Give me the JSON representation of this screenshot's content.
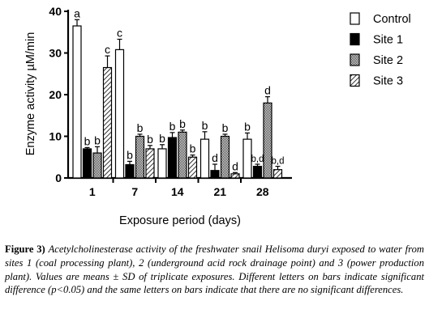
{
  "chart_data": {
    "type": "bar",
    "ylabel": "Enzyme activity µM/min",
    "xlabel": "Exposure period (days)",
    "ylim": [
      0,
      40
    ],
    "yticks": [
      "0",
      "10",
      "20",
      "30",
      "40"
    ],
    "categories": [
      "1",
      "7",
      "14",
      "21",
      "28"
    ],
    "legend_position": "top-right",
    "grid": false,
    "series": [
      {
        "name": "Control",
        "pattern": "white",
        "values": [
          36.5,
          30.8,
          7.0,
          9.3,
          9.3
        ],
        "errors": [
          1.5,
          2.5,
          1.0,
          1.8,
          1.5
        ],
        "letters": [
          "a",
          "c",
          "b",
          "b",
          "b"
        ]
      },
      {
        "name": "Site 1",
        "pattern": "black",
        "values": [
          7.0,
          3.2,
          9.7,
          1.8,
          2.8
        ],
        "errors": [
          0.3,
          0.8,
          1.2,
          1.5,
          0.5
        ],
        "letters": [
          "b",
          "b",
          "b",
          "d",
          "b,d"
        ]
      },
      {
        "name": "Site 2",
        "pattern": "checker",
        "values": [
          6.0,
          10.0,
          11.0,
          10.0,
          18.0
        ],
        "errors": [
          1.5,
          0.5,
          0.5,
          0.5,
          1.5
        ],
        "letters": [
          "b",
          "b",
          "b",
          "b",
          "d"
        ]
      },
      {
        "name": "Site 3",
        "pattern": "hatch",
        "values": [
          26.5,
          7.0,
          5.0,
          1.0,
          2.0
        ],
        "errors": [
          2.8,
          0.8,
          0.5,
          0.3,
          0.8
        ],
        "letters": [
          "c",
          "b",
          "b",
          "d",
          "b,d"
        ]
      }
    ]
  },
  "caption": {
    "label": "Figure 3)",
    "text": "Acetylcholinesterase activity of the freshwater snail Helisoma duryi exposed to water from sites 1 (coal processing plant), 2 (underground acid rock drainage point) and 3 (power production plant). Values are means ± SD of triplicate exposures. Different letters on bars indicate significant difference (p<0.05) and the same letters on bars indicate that there are no significant differences."
  }
}
